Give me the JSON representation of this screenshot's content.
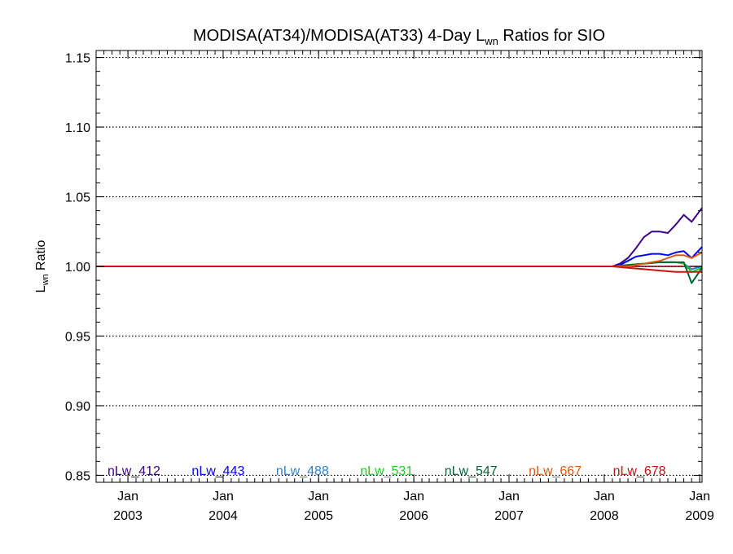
{
  "chart_data": {
    "type": "line",
    "title": {
      "prefix": "MODISA(AT34)/MODISA(AT33) 4-Day L",
      "subscript": "wn",
      "suffix": " Ratios for SIO"
    },
    "ylabel": {
      "main": "L",
      "subscript": "wn",
      "suffix": " Ratio"
    },
    "xlabel": "",
    "ylim": [
      0.845,
      1.155
    ],
    "yticks": [
      {
        "value": 0.85,
        "label": "0.85"
      },
      {
        "value": 0.9,
        "label": "0.90"
      },
      {
        "value": 0.95,
        "label": "0.95"
      },
      {
        "value": 1.0,
        "label": "1.00"
      },
      {
        "value": 1.05,
        "label": "1.05"
      },
      {
        "value": 1.1,
        "label": "1.10"
      },
      {
        "value": 1.15,
        "label": "1.15"
      }
    ],
    "y_minor_step": 0.01,
    "xlim": [
      "2002-09-01",
      "2009-01-10"
    ],
    "xticks": [
      {
        "date": "2003-01-01",
        "month": "Jan",
        "year": "2003"
      },
      {
        "date": "2004-01-01",
        "month": "Jan",
        "year": "2004"
      },
      {
        "date": "2005-01-01",
        "month": "Jan",
        "year": "2005"
      },
      {
        "date": "2006-01-01",
        "month": "Jan",
        "year": "2006"
      },
      {
        "date": "2007-01-01",
        "month": "Jan",
        "year": "2007"
      },
      {
        "date": "2008-01-01",
        "month": "Jan",
        "year": "2008"
      },
      {
        "date": "2009-01-01",
        "month": "Jan",
        "year": "2009"
      }
    ],
    "x_minor": "month",
    "grid": "dotted horizontal at major y ticks",
    "reference_line": {
      "value": 1.0,
      "color": "#ff0000",
      "style": "dotted"
    },
    "legend_position": "bottom",
    "series": [
      {
        "name": "nLw_412",
        "color": "#3c0082",
        "x": [
          "2002-09-01",
          "2008-02-01",
          "2008-03-01",
          "2008-04-01",
          "2008-05-01",
          "2008-06-01",
          "2008-07-01",
          "2008-08-01",
          "2008-09-01",
          "2008-10-01",
          "2008-11-01",
          "2008-12-01",
          "2009-01-10"
        ],
        "y": [
          1.0,
          1.0,
          1.002,
          1.006,
          1.013,
          1.021,
          1.025,
          1.025,
          1.024,
          1.03,
          1.037,
          1.032,
          1.042
        ]
      },
      {
        "name": "nLw_443",
        "color": "#0000ff",
        "x": [
          "2002-09-01",
          "2008-02-01",
          "2008-03-01",
          "2008-04-01",
          "2008-05-01",
          "2008-06-01",
          "2008-07-01",
          "2008-08-01",
          "2008-09-01",
          "2008-10-01",
          "2008-11-01",
          "2008-12-01",
          "2009-01-10"
        ],
        "y": [
          1.0,
          1.0,
          1.001,
          1.004,
          1.007,
          1.008,
          1.009,
          1.009,
          1.008,
          1.01,
          1.011,
          1.006,
          1.014
        ]
      },
      {
        "name": "nLw_488",
        "color": "#2f80d0",
        "x": [
          "2002-09-01",
          "2008-02-01",
          "2008-04-01",
          "2008-06-01",
          "2008-08-01",
          "2008-10-01",
          "2008-11-01",
          "2008-12-01",
          "2009-01-10"
        ],
        "y": [
          1.0,
          1.0,
          1.001,
          1.002,
          1.003,
          1.003,
          1.002,
          0.998,
          1.0
        ]
      },
      {
        "name": "nLw_531",
        "color": "#22cc22",
        "x": [
          "2002-09-01",
          "2008-02-01",
          "2008-04-01",
          "2008-06-01",
          "2008-08-01",
          "2008-10-01",
          "2008-11-01",
          "2008-12-01",
          "2009-01-10"
        ],
        "y": [
          1.0,
          1.0,
          1.001,
          1.002,
          1.003,
          1.003,
          1.002,
          0.996,
          0.999
        ]
      },
      {
        "name": "nLw_547",
        "color": "#006633",
        "x": [
          "2002-09-01",
          "2008-02-01",
          "2008-04-01",
          "2008-06-01",
          "2008-08-01",
          "2008-10-01",
          "2008-11-01",
          "2008-12-01",
          "2009-01-10"
        ],
        "y": [
          1.0,
          1.0,
          1.001,
          1.002,
          1.003,
          1.003,
          1.003,
          0.988,
          0.999
        ]
      },
      {
        "name": "nLw_667",
        "color": "#e05a10",
        "x": [
          "2002-09-01",
          "2008-02-01",
          "2008-04-01",
          "2008-06-01",
          "2008-07-01",
          "2008-08-01",
          "2008-09-01",
          "2008-10-01",
          "2008-11-01",
          "2008-12-01",
          "2009-01-10"
        ],
        "y": [
          1.0,
          1.0,
          1.0,
          1.002,
          1.003,
          1.004,
          1.006,
          1.008,
          1.008,
          1.006,
          1.01
        ]
      },
      {
        "name": "nLw_678",
        "color": "#cc1111",
        "x": [
          "2002-09-01",
          "2008-02-01",
          "2008-04-01",
          "2008-06-01",
          "2008-08-01",
          "2008-10-01",
          "2008-11-01",
          "2008-12-01",
          "2009-01-10"
        ],
        "y": [
          1.0,
          1.0,
          0.999,
          0.998,
          0.997,
          0.996,
          0.996,
          0.996,
          0.996
        ]
      }
    ]
  }
}
